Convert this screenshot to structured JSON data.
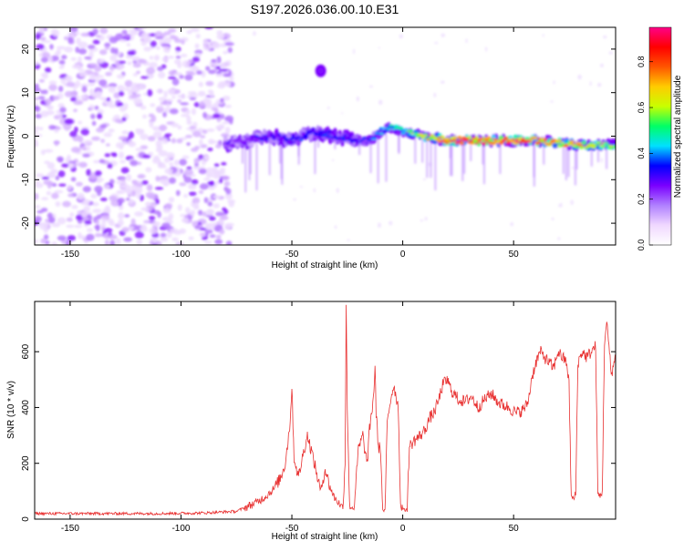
{
  "title": "S197.2026.036.00.10.E31",
  "chart_data": [
    {
      "type": "heatmap",
      "xlabel": "Height of straight line (km)",
      "ylabel": "Frequency (Hz)",
      "xlim": [
        -166,
        96
      ],
      "ylim": [
        -25,
        25
      ],
      "xticks": [
        -150,
        -100,
        -50,
        0,
        50
      ],
      "yticks": [
        -20,
        -10,
        0,
        10,
        20
      ],
      "colorbar": {
        "label": "Normalized spectral amplitude",
        "range": [
          0,
          0.95
        ],
        "ticks": [
          0.0,
          0.2,
          0.4,
          0.6,
          0.8
        ],
        "colors": [
          "#ffffff",
          "#f0d8ff",
          "#b080ff",
          "#7a00ff",
          "#0000ff",
          "#00e0ff",
          "#00ff66",
          "#c8ff00",
          "#ffcc00",
          "#ff5500",
          "#ff0000",
          "#ff0088"
        ]
      },
      "noise_region": {
        "x_range": [
          -166,
          -80
        ],
        "freq_range": [
          -25,
          25
        ],
        "amplitude_range": [
          0.0,
          0.12
        ]
      },
      "ridge": {
        "description": "signal band near 0 Hz",
        "x_range": [
          -80,
          96
        ],
        "points": [
          [
            -80,
            -2
          ],
          [
            -70,
            -1
          ],
          [
            -60,
            0
          ],
          [
            -50,
            -1
          ],
          [
            -40,
            1
          ],
          [
            -30,
            0
          ],
          [
            -20,
            -1
          ],
          [
            -15,
            -1
          ],
          [
            -10,
            1
          ],
          [
            -5,
            2
          ],
          [
            0,
            1
          ],
          [
            10,
            0
          ],
          [
            20,
            -1
          ],
          [
            40,
            -1
          ],
          [
            60,
            -1
          ],
          [
            80,
            -2
          ],
          [
            96,
            -2
          ]
        ],
        "amplitude_trend": [
          [
            -80,
            0.25
          ],
          [
            -40,
            0.35
          ],
          [
            -20,
            0.3
          ],
          [
            0,
            0.5
          ],
          [
            20,
            0.85
          ],
          [
            50,
            0.9
          ],
          [
            70,
            0.8
          ],
          [
            96,
            0.55
          ]
        ]
      },
      "blob": {
        "x": -37,
        "freq": 15,
        "amplitude": 0.25
      }
    },
    {
      "type": "line",
      "xlabel": "Height of straight line (km)",
      "ylabel": "SNR (10 * v/v)",
      "xlim": [
        -166,
        96
      ],
      "ylim": [
        0,
        780
      ],
      "xticks": [
        -150,
        -100,
        -50,
        0,
        50
      ],
      "yticks": [
        0,
        200,
        400,
        600
      ],
      "color": "#e83030",
      "series": [
        {
          "name": "SNR",
          "points": [
            [
              -166,
              20
            ],
            [
              -140,
              20
            ],
            [
              -110,
              20
            ],
            [
              -90,
              22
            ],
            [
              -75,
              28
            ],
            [
              -70,
              45
            ],
            [
              -66,
              60
            ],
            [
              -62,
              80
            ],
            [
              -58,
              110
            ],
            [
              -55,
              150
            ],
            [
              -53,
              200
            ],
            [
              -51,
              330
            ],
            [
              -50,
              470
            ],
            [
              -49,
              220
            ],
            [
              -47,
              150
            ],
            [
              -45,
              230
            ],
            [
              -43,
              300
            ],
            [
              -41,
              240
            ],
            [
              -39,
              170
            ],
            [
              -37,
              100
            ],
            [
              -35,
              180
            ],
            [
              -33,
              120
            ],
            [
              -31,
              80
            ],
            [
              -29,
              60
            ],
            [
              -27,
              40
            ],
            [
              -26,
              200
            ],
            [
              -25.5,
              780
            ],
            [
              -25,
              400
            ],
            [
              -24,
              50
            ],
            [
              -22,
              35
            ],
            [
              -20,
              250
            ],
            [
              -18,
              300
            ],
            [
              -17,
              240
            ],
            [
              -16,
              200
            ],
            [
              -15,
              320
            ],
            [
              -14,
              380
            ],
            [
              -13,
              460
            ],
            [
              -12.5,
              550
            ],
            [
              -12,
              380
            ],
            [
              -11,
              260
            ],
            [
              -10,
              250
            ],
            [
              -9,
              30
            ],
            [
              -8,
              30
            ],
            [
              -7,
              340
            ],
            [
              -6,
              400
            ],
            [
              -5,
              450
            ],
            [
              -4,
              480
            ],
            [
              -3,
              440
            ],
            [
              -2,
              400
            ],
            [
              -1,
              50
            ],
            [
              0,
              40
            ],
            [
              1,
              30
            ],
            [
              2,
              40
            ],
            [
              3,
              260
            ],
            [
              5,
              280
            ],
            [
              8,
              300
            ],
            [
              10,
              320
            ],
            [
              12,
              360
            ],
            [
              14,
              380
            ],
            [
              16,
              420
            ],
            [
              18,
              480
            ],
            [
              20,
              500
            ],
            [
              22,
              460
            ],
            [
              25,
              430
            ],
            [
              28,
              420
            ],
            [
              31,
              440
            ],
            [
              34,
              400
            ],
            [
              37,
              430
            ],
            [
              40,
              450
            ],
            [
              43,
              420
            ],
            [
              45,
              410
            ],
            [
              48,
              400
            ],
            [
              51,
              380
            ],
            [
              54,
              390
            ],
            [
              56,
              410
            ],
            [
              57,
              440
            ],
            [
              58,
              500
            ],
            [
              60,
              560
            ],
            [
              62,
              600
            ],
            [
              64,
              580
            ],
            [
              66,
              560
            ],
            [
              68,
              540
            ],
            [
              70,
              600
            ],
            [
              72,
              580
            ],
            [
              74,
              560
            ],
            [
              75,
              480
            ],
            [
              76,
              80
            ],
            [
              77,
              70
            ],
            [
              78,
              90
            ],
            [
              79,
              560
            ],
            [
              81,
              600
            ],
            [
              83,
              580
            ],
            [
              85,
              600
            ],
            [
              87,
              620
            ],
            [
              88,
              90
            ],
            [
              89,
              80
            ],
            [
              90,
              100
            ],
            [
              91,
              640
            ],
            [
              92,
              700
            ],
            [
              93,
              620
            ],
            [
              94,
              520
            ],
            [
              96,
              580
            ]
          ]
        }
      ]
    }
  ]
}
